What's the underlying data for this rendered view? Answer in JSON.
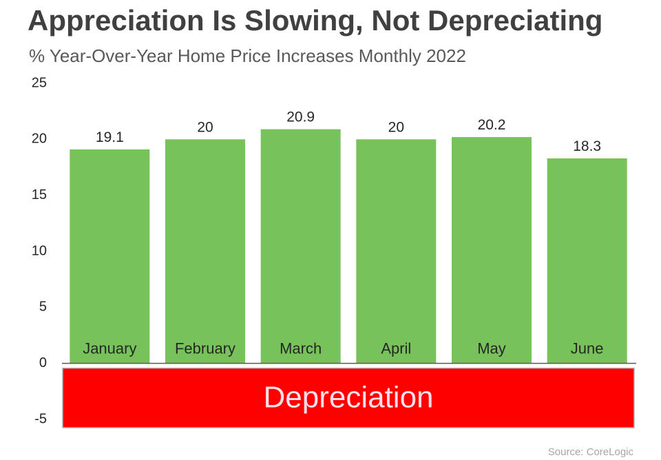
{
  "chart_data": {
    "type": "bar",
    "title": "Appreciation Is Slowing, Not Depreciating",
    "subtitle": "% Year-Over-Year Home Price Increases Monthly 2022",
    "categories": [
      "January",
      "February",
      "March",
      "April",
      "May",
      "June"
    ],
    "values": [
      19.1,
      20,
      20.9,
      20,
      20.2,
      18.3
    ],
    "value_labels": [
      "19.1",
      "20",
      "20.9",
      "20",
      "20.2",
      "18.3"
    ],
    "ylim": [
      -5,
      25
    ],
    "yticks": [
      -5,
      0,
      5,
      10,
      15,
      20,
      25
    ],
    "ytick_labels": [
      "-5",
      "0",
      "5",
      "10",
      "15",
      "20",
      "25"
    ],
    "grid": false,
    "bar_color": "#77c25a",
    "negative_region": {
      "label": "Depreciation",
      "range": [
        -5,
        0
      ],
      "color": "#ff0000"
    },
    "source": "Source: CoreLogic"
  }
}
